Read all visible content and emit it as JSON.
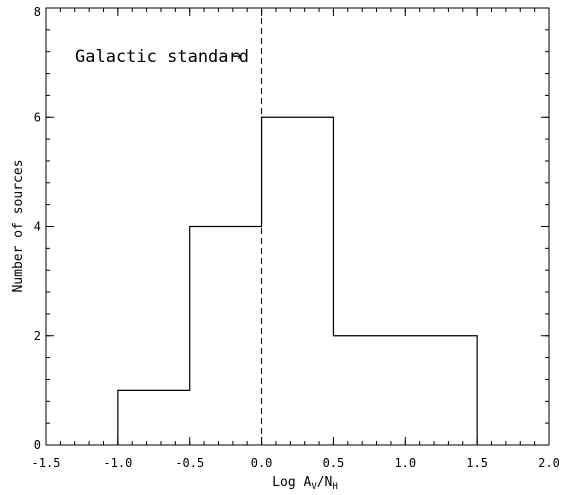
{
  "chart_data": {
    "type": "bar",
    "style": "step-histogram",
    "bins": [
      {
        "start": -1.0,
        "end": -0.5,
        "count": 1
      },
      {
        "start": -0.5,
        "end": 0.0,
        "count": 4
      },
      {
        "start": 0.0,
        "end": 0.5,
        "count": 6
      },
      {
        "start": 0.5,
        "end": 1.5,
        "count": 2
      }
    ],
    "xlabel": {
      "prefix": "Log A",
      "sub1": "V",
      "mid": "/N",
      "sub2": "H"
    },
    "ylabel": "Number of sources",
    "xlim": [
      -1.5,
      2.0
    ],
    "ylim": [
      0,
      8
    ],
    "xticks": [
      -1.5,
      -1.0,
      -0.5,
      0.0,
      0.5,
      1.0,
      1.5,
      2.0
    ],
    "xtick_labels": [
      "-1.5",
      "-1.0",
      "-0.5",
      "0.0",
      "0.5",
      "1.0",
      "1.5",
      "2.0"
    ],
    "xminor_step": 0.1,
    "yticks": [
      0,
      2,
      4,
      6,
      8
    ],
    "ytick_labels": [
      "0",
      "2",
      "4",
      "6",
      "8"
    ],
    "yminor_step": 0.4,
    "grid": false,
    "reference_line": {
      "x": 0.0,
      "style": "dashed"
    },
    "annotation": {
      "text": "Galactic standard",
      "arrow": "→"
    },
    "line_color": "#000000"
  }
}
